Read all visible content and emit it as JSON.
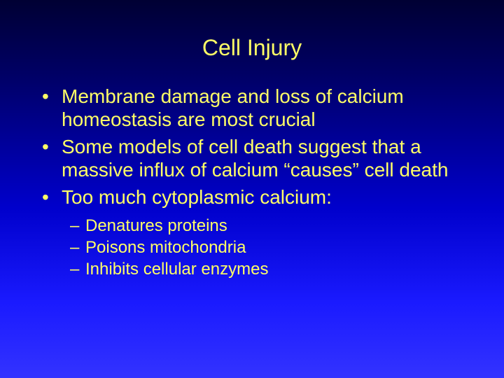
{
  "slide": {
    "title": "Cell Injury",
    "title_color": "#ffff66",
    "text_color": "#ffff66",
    "background_gradient": [
      "#000033",
      "#000066",
      "#0000cc",
      "#1a1aff",
      "#3333ff"
    ],
    "title_fontsize": 32,
    "bullet_fontsize": 28,
    "subbullet_fontsize": 24,
    "font_family": "Arial",
    "bullets": [
      "Membrane damage and loss of calcium homeostasis are most crucial",
      "Some models of cell death suggest that a massive influx of calcium “causes” cell death",
      "Too much cytoplasmic calcium:"
    ],
    "subbullets": [
      "Denatures proteins",
      "Poisons mitochondria",
      "Inhibits cellular enzymes"
    ]
  }
}
